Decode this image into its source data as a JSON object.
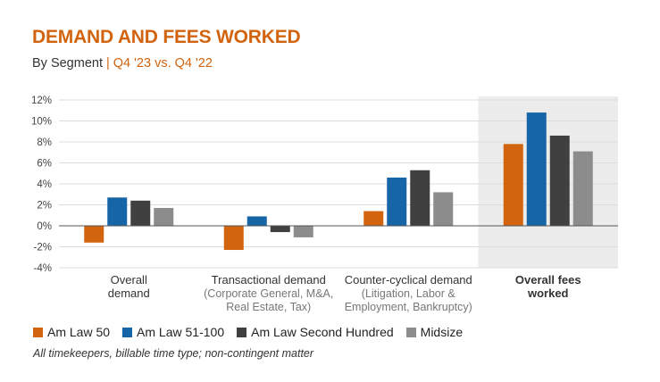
{
  "header": {
    "title": "DEMAND AND FEES WORKED",
    "subtitle_prefix": "By Segment",
    "subtitle_separator": "|",
    "subtitle_period": "Q4 '23 vs. Q4 '22"
  },
  "chart_data": {
    "type": "bar",
    "title": "DEMAND AND FEES WORKED",
    "subtitle": "By Segment | Q4 '23 vs. Q4 '22",
    "ylim": [
      -4,
      12
    ],
    "yticks": [
      12,
      10,
      8,
      6,
      4,
      2,
      0,
      -2,
      -4
    ],
    "ytick_labels": [
      "12%",
      "10%",
      "8%",
      "6%",
      "4%",
      "2%",
      "0%",
      "-2%",
      "-4%"
    ],
    "grid": true,
    "legend_position": "bottom-left",
    "highlighted_category_index": 3,
    "highlight_color": "#ececec",
    "categories": [
      {
        "lines": [
          "Overall",
          "demand"
        ],
        "sub": [],
        "bold": false
      },
      {
        "lines": [
          "Transactional demand"
        ],
        "sub": [
          "(Corporate General, M&A,",
          "Real Estate, Tax)"
        ],
        "bold": false
      },
      {
        "lines": [
          "Counter-cyclical demand"
        ],
        "sub": [
          "(Litigation, Labor &",
          "Employment, Bankruptcy)"
        ],
        "bold": false
      },
      {
        "lines": [
          "Overall fees",
          "worked"
        ],
        "sub": [],
        "bold": true
      }
    ],
    "series": [
      {
        "name": "Am Law 50",
        "color": "#d2640f",
        "values": [
          -1.6,
          -2.3,
          1.4,
          7.8
        ]
      },
      {
        "name": "Am Law 51-100",
        "color": "#1565a7",
        "values": [
          2.7,
          0.9,
          4.6,
          10.8
        ]
      },
      {
        "name": "Am Law Second Hundred",
        "color": "#404040",
        "values": [
          2.4,
          -0.6,
          5.3,
          8.6
        ]
      },
      {
        "name": "Midsize",
        "color": "#8c8c8c",
        "values": [
          1.7,
          -1.1,
          3.2,
          7.1
        ]
      }
    ]
  },
  "legend": [
    {
      "label": "Am Law 50",
      "color": "#d2640f"
    },
    {
      "label": "Am Law 51-100",
      "color": "#1565a7"
    },
    {
      "label": "Am Law Second Hundred",
      "color": "#404040"
    },
    {
      "label": "Midsize",
      "color": "#8c8c8c"
    }
  ],
  "footnote": "All timekeepers, billable time type; non-contingent matter"
}
